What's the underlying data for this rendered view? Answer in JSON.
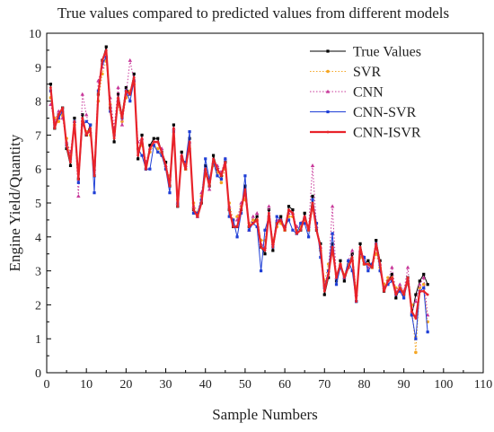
{
  "chart_data": {
    "type": "line",
    "title": "True values compared to predicted values from different models",
    "xlabel": "Sample Numbers",
    "ylabel": "Engine Yield/Quantity",
    "xlim": [
      0,
      110
    ],
    "ylim": [
      0,
      10
    ],
    "xticks": [
      0,
      10,
      20,
      30,
      40,
      50,
      60,
      70,
      80,
      90,
      100,
      110
    ],
    "yticks": [
      0,
      1,
      2,
      3,
      4,
      5,
      6,
      7,
      8,
      9,
      10
    ],
    "grid": false,
    "legend_position": "top-right",
    "x": [
      1,
      2,
      3,
      4,
      5,
      6,
      7,
      8,
      9,
      10,
      11,
      12,
      13,
      14,
      15,
      16,
      17,
      18,
      19,
      20,
      21,
      22,
      23,
      24,
      25,
      26,
      27,
      28,
      29,
      30,
      31,
      32,
      33,
      34,
      35,
      36,
      37,
      38,
      39,
      40,
      41,
      42,
      43,
      44,
      45,
      46,
      47,
      48,
      49,
      50,
      51,
      52,
      53,
      54,
      55,
      56,
      57,
      58,
      59,
      60,
      61,
      62,
      63,
      64,
      65,
      66,
      67,
      68,
      69,
      70,
      71,
      72,
      73,
      74,
      75,
      76,
      77,
      78,
      79,
      80,
      81,
      82,
      83,
      84,
      85,
      86,
      87,
      88,
      89,
      90,
      91,
      92,
      93,
      94,
      95,
      96
    ],
    "series": [
      {
        "name": "True Values",
        "color": "#000000",
        "style": "line-square",
        "values": [
          8.5,
          7.2,
          7.6,
          7.8,
          6.6,
          6.1,
          7.5,
          5.7,
          7.6,
          7.0,
          7.3,
          5.8,
          8.2,
          9.2,
          9.6,
          7.8,
          6.8,
          8.2,
          7.6,
          8.4,
          8.2,
          8.8,
          6.3,
          7.0,
          6.0,
          6.7,
          6.9,
          6.9,
          6.5,
          6.2,
          5.5,
          7.3,
          4.9,
          6.5,
          6.0,
          6.9,
          4.8,
          4.6,
          5.0,
          6.1,
          5.5,
          6.4,
          6.0,
          5.8,
          6.2,
          4.8,
          4.3,
          4.3,
          4.8,
          5.5,
          4.3,
          4.4,
          4.6,
          3.7,
          3.5,
          4.8,
          3.6,
          4.4,
          4.6,
          4.2,
          4.9,
          4.8,
          4.1,
          4.2,
          4.7,
          4.2,
          5.2,
          4.2,
          3.8,
          2.3,
          2.8,
          3.8,
          2.7,
          3.3,
          2.7,
          3.1,
          3.5,
          2.1,
          3.8,
          3.2,
          3.3,
          3.1,
          3.9,
          3.3,
          2.4,
          2.7,
          2.9,
          2.2,
          2.5,
          2.3,
          2.8,
          1.7,
          2.3,
          2.7,
          2.9,
          2.6
        ]
      },
      {
        "name": "SVR",
        "color": "#f5a623",
        "style": "dotted-circle",
        "values": [
          8.1,
          7.5,
          7.4,
          7.6,
          6.9,
          6.4,
          7.3,
          6.0,
          7.4,
          7.1,
          7.0,
          6.1,
          8.0,
          8.8,
          9.2,
          7.9,
          7.1,
          7.9,
          7.4,
          8.1,
          8.3,
          8.5,
          6.6,
          6.7,
          6.1,
          6.5,
          6.7,
          6.6,
          6.4,
          6.0,
          5.8,
          6.9,
          5.1,
          6.3,
          6.0,
          6.6,
          5.0,
          4.7,
          5.2,
          5.8,
          5.6,
          6.1,
          5.9,
          5.6,
          6.0,
          5.0,
          4.5,
          4.6,
          4.9,
          5.1,
          4.4,
          4.5,
          4.5,
          3.9,
          3.9,
          4.6,
          3.9,
          4.3,
          4.4,
          4.2,
          4.6,
          4.6,
          4.2,
          4.3,
          4.5,
          4.2,
          4.8,
          4.4,
          3.6,
          2.7,
          3.2,
          3.5,
          2.9,
          3.2,
          2.9,
          3.2,
          3.3,
          2.5,
          3.4,
          3.2,
          3.2,
          3.1,
          3.5,
          3.1,
          2.6,
          2.8,
          2.8,
          2.5,
          2.5,
          2.4,
          2.6,
          2.0,
          0.6,
          2.5,
          2.6,
          1.5
        ]
      },
      {
        "name": "CNN",
        "color": "#c8389a",
        "style": "dotted-triangle",
        "values": [
          7.9,
          7.4,
          7.7,
          7.5,
          6.8,
          6.5,
          7.4,
          5.2,
          8.2,
          7.6,
          7.1,
          6.0,
          8.6,
          9.0,
          9.3,
          8.1,
          7.2,
          8.4,
          7.3,
          8.2,
          9.2,
          8.6,
          6.8,
          6.9,
          6.2,
          6.6,
          6.8,
          6.8,
          6.6,
          6.1,
          5.7,
          7.2,
          5.0,
          6.4,
          6.1,
          6.8,
          4.9,
          4.6,
          5.3,
          6.0,
          5.4,
          6.2,
          6.1,
          5.9,
          6.3,
          4.9,
          4.4,
          4.5,
          5.0,
          5.3,
          4.2,
          4.6,
          4.7,
          3.8,
          3.7,
          4.9,
          3.8,
          4.5,
          4.5,
          4.3,
          4.7,
          4.7,
          4.3,
          4.4,
          4.6,
          4.3,
          6.1,
          4.3,
          3.7,
          2.6,
          3.0,
          4.9,
          2.8,
          3.2,
          2.8,
          3.3,
          3.6,
          2.3,
          3.6,
          3.4,
          3.1,
          3.2,
          3.7,
          3.2,
          2.5,
          2.7,
          3.1,
          2.4,
          2.6,
          2.4,
          3.1,
          1.8,
          2.1,
          2.6,
          2.8,
          1.7
        ]
      },
      {
        "name": "CNN-SVR",
        "color": "#1f3fd6",
        "style": "line-square",
        "values": [
          8.3,
          7.3,
          7.5,
          7.7,
          6.7,
          6.3,
          7.4,
          5.6,
          7.3,
          7.4,
          7.3,
          5.3,
          8.3,
          9.1,
          9.3,
          7.7,
          7.0,
          8.0,
          7.5,
          8.3,
          8.0,
          8.6,
          6.6,
          6.4,
          6.0,
          6.0,
          6.7,
          6.5,
          6.4,
          6.0,
          5.3,
          7.1,
          5.0,
          6.3,
          6.2,
          7.1,
          4.7,
          4.7,
          5.1,
          6.3,
          5.7,
          6.2,
          5.8,
          5.7,
          6.3,
          4.6,
          4.5,
          4.0,
          4.7,
          5.8,
          4.2,
          4.4,
          4.3,
          3.0,
          4.2,
          4.6,
          3.7,
          4.6,
          4.5,
          4.3,
          4.5,
          4.2,
          4.1,
          4.4,
          4.4,
          4.0,
          5.1,
          4.4,
          3.4,
          2.5,
          3.0,
          4.1,
          2.6,
          3.1,
          2.8,
          3.3,
          3.0,
          2.1,
          3.5,
          3.4,
          3.0,
          3.2,
          3.8,
          3.0,
          2.5,
          2.6,
          2.7,
          2.3,
          2.4,
          2.2,
          2.7,
          1.7,
          1.0,
          2.4,
          2.5,
          1.2
        ]
      },
      {
        "name": "CNN-ISVR",
        "color": "#e8232a",
        "style": "line-thick",
        "values": [
          8.4,
          7.2,
          7.6,
          7.8,
          6.7,
          6.2,
          7.4,
          5.7,
          7.5,
          7.0,
          7.2,
          5.8,
          8.2,
          9.2,
          9.5,
          7.8,
          6.9,
          8.1,
          7.5,
          8.3,
          8.2,
          8.7,
          6.4,
          6.9,
          6.0,
          6.6,
          6.8,
          6.8,
          6.5,
          6.1,
          5.5,
          7.2,
          4.9,
          6.4,
          6.0,
          6.8,
          4.8,
          4.6,
          5.0,
          6.0,
          5.5,
          6.3,
          6.0,
          5.8,
          6.2,
          4.8,
          4.3,
          4.3,
          4.8,
          5.4,
          4.3,
          4.4,
          4.5,
          3.7,
          3.6,
          4.7,
          3.7,
          4.4,
          4.5,
          4.2,
          4.8,
          4.7,
          4.1,
          4.2,
          4.6,
          4.2,
          5.0,
          4.2,
          3.7,
          2.4,
          2.9,
          3.7,
          2.8,
          3.2,
          2.8,
          3.1,
          3.4,
          2.1,
          3.7,
          3.2,
          3.2,
          3.1,
          3.8,
          3.2,
          2.4,
          2.7,
          2.8,
          2.3,
          2.5,
          2.3,
          2.8,
          1.8,
          1.6,
          2.4,
          2.4,
          2.3
        ]
      }
    ]
  }
}
